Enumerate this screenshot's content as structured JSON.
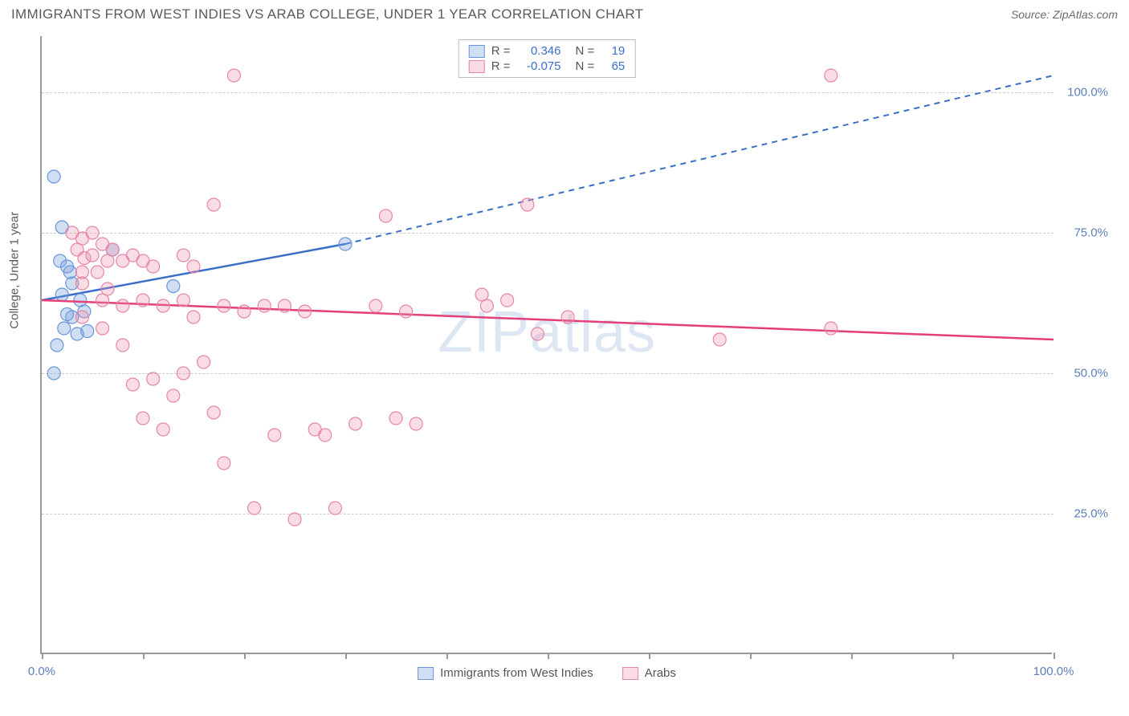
{
  "title": "IMMIGRANTS FROM WEST INDIES VS ARAB COLLEGE, UNDER 1 YEAR CORRELATION CHART",
  "source": "Source: ZipAtlas.com",
  "watermark": "ZIPatlas",
  "chart": {
    "type": "scatter",
    "xlim": [
      0,
      100
    ],
    "ylim": [
      0,
      110
    ],
    "xticks": [
      0,
      10,
      20,
      30,
      40,
      50,
      60,
      70,
      80,
      90,
      100
    ],
    "yticks": [
      25,
      50,
      75,
      100
    ],
    "xlabels": {
      "0": "0.0%",
      "100": "100.0%"
    },
    "ylabels": {
      "25": "25.0%",
      "50": "50.0%",
      "75": "75.0%",
      "100": "100.0%"
    },
    "y_axis_title": "College, Under 1 year",
    "grid_color": "#cccccc",
    "axis_color": "#999999",
    "background_color": "#ffffff",
    "marker_radius": 8,
    "marker_stroke_width": 1.2,
    "series": [
      {
        "name": "Immigrants from West Indies",
        "color_fill": "rgba(120,160,220,0.35)",
        "color_stroke": "#6a95d8",
        "line_color": "#3a6fc8",
        "R": "0.346",
        "N": "19",
        "trend": {
          "x1": 0,
          "y1": 63,
          "x2": 30,
          "y2": 73,
          "x2_ext": 100,
          "y2_ext": 103
        },
        "points": [
          [
            1.2,
            85
          ],
          [
            2,
            76
          ],
          [
            1.8,
            70
          ],
          [
            2.5,
            69
          ],
          [
            2,
            64
          ],
          [
            3,
            60
          ],
          [
            2.5,
            60.5
          ],
          [
            2.2,
            58
          ],
          [
            3.5,
            57
          ],
          [
            4.5,
            57.5
          ],
          [
            1.5,
            55
          ],
          [
            1.2,
            50
          ],
          [
            13,
            65.5
          ],
          [
            7,
            72
          ],
          [
            30,
            73
          ],
          [
            3.8,
            63
          ],
          [
            4.2,
            61
          ],
          [
            3,
            66
          ],
          [
            2.8,
            68
          ]
        ]
      },
      {
        "name": "Arabs",
        "color_fill": "rgba(240,140,170,0.30)",
        "color_stroke": "#e586a6",
        "line_color": "#e43f7a",
        "R": "-0.075",
        "N": "65",
        "trend": {
          "x1": 0,
          "y1": 63,
          "x2": 100,
          "y2": 56
        },
        "points": [
          [
            3,
            75
          ],
          [
            4,
            74
          ],
          [
            5,
            75
          ],
          [
            3.5,
            72
          ],
          [
            4.2,
            70.5
          ],
          [
            5,
            71
          ],
          [
            6,
            73
          ],
          [
            6.5,
            70
          ],
          [
            7,
            72
          ],
          [
            4,
            68
          ],
          [
            5.5,
            68
          ],
          [
            4,
            66
          ],
          [
            8,
            70
          ],
          [
            9,
            71
          ],
          [
            10,
            70
          ],
          [
            11,
            69
          ],
          [
            14,
            71
          ],
          [
            15,
            69
          ],
          [
            17,
            80
          ],
          [
            19,
            103
          ],
          [
            6,
            63
          ],
          [
            8,
            62
          ],
          [
            10,
            63
          ],
          [
            12,
            62
          ],
          [
            14,
            63
          ],
          [
            18,
            62
          ],
          [
            20,
            61
          ],
          [
            22,
            62
          ],
          [
            24,
            62
          ],
          [
            26,
            61
          ],
          [
            34,
            78
          ],
          [
            36,
            61
          ],
          [
            43.5,
            64
          ],
          [
            44,
            62
          ],
          [
            46,
            63
          ],
          [
            48,
            80
          ],
          [
            52,
            60
          ],
          [
            78,
            103
          ],
          [
            67,
            56
          ],
          [
            49,
            57
          ],
          [
            4,
            60
          ],
          [
            6,
            58
          ],
          [
            8,
            55
          ],
          [
            9,
            48
          ],
          [
            11,
            49
          ],
          [
            13,
            46
          ],
          [
            15,
            60
          ],
          [
            17,
            43
          ],
          [
            18,
            34
          ],
          [
            21,
            26
          ],
          [
            23,
            39
          ],
          [
            25,
            24
          ],
          [
            27,
            40
          ],
          [
            28,
            39
          ],
          [
            29,
            26
          ],
          [
            31,
            41
          ],
          [
            33,
            62
          ],
          [
            35,
            42
          ],
          [
            37,
            41
          ],
          [
            10,
            42
          ],
          [
            12,
            40
          ],
          [
            14,
            50
          ],
          [
            16,
            52
          ],
          [
            6.5,
            65
          ],
          [
            78,
            58
          ]
        ]
      }
    ],
    "legend_top": [
      {
        "swatch_fill": "rgba(120,160,220,0.35)",
        "swatch_stroke": "#6a95d8",
        "r_label": "R =",
        "r_val": "0.346",
        "n_label": "N =",
        "n_val": "19"
      },
      {
        "swatch_fill": "rgba(240,140,170,0.30)",
        "swatch_stroke": "#e586a6",
        "r_label": "R =",
        "r_val": "-0.075",
        "n_label": "N =",
        "n_val": "65"
      }
    ],
    "legend_bottom": [
      {
        "swatch_fill": "rgba(120,160,220,0.35)",
        "swatch_stroke": "#6a95d8",
        "label": "Immigrants from West Indies"
      },
      {
        "swatch_fill": "rgba(240,140,170,0.30)",
        "swatch_stroke": "#e586a6",
        "label": "Arabs"
      }
    ]
  }
}
